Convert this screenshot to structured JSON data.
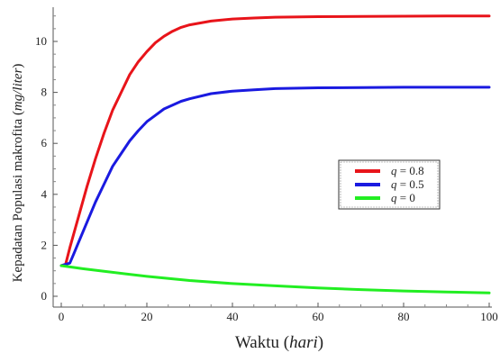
{
  "chart_data": {
    "type": "line",
    "xlabel": {
      "main": "Waktu (",
      "italic": "hari",
      "end": ")"
    },
    "ylabel": {
      "main": "Kepadatan Populasi makrofita (",
      "italic": "mg/liter",
      "end": ")"
    },
    "xlim": [
      0,
      100
    ],
    "ylim": [
      -0.2,
      11.5
    ],
    "xticks": [
      0,
      20,
      40,
      60,
      80,
      100
    ],
    "yticks": [
      0,
      2,
      4,
      6,
      8,
      10
    ],
    "grid": false,
    "legend_position": "right-middle",
    "series": [
      {
        "name": "q = 0.8",
        "legend_var": "q",
        "legend_value": "= 0.8",
        "color": "#e8141a",
        "x": [
          0,
          1,
          2,
          4,
          6,
          8,
          10,
          12,
          14,
          16,
          18,
          20,
          22,
          24,
          26,
          28,
          30,
          35,
          40,
          45,
          50,
          60,
          70,
          80,
          90,
          100
        ],
        "y": [
          1.2,
          1.25,
          1.9,
          3.1,
          4.3,
          5.4,
          6.4,
          7.3,
          8.0,
          8.7,
          9.2,
          9.6,
          9.95,
          10.2,
          10.4,
          10.55,
          10.65,
          10.8,
          10.88,
          10.92,
          10.95,
          10.97,
          10.98,
          10.99,
          11.0,
          11.0
        ]
      },
      {
        "name": "q = 0.5",
        "legend_var": "q",
        "legend_value": "= 0.5",
        "color": "#1a1ae0",
        "x": [
          0,
          1,
          2,
          3,
          4,
          6,
          8,
          10,
          12,
          14,
          16,
          18,
          20,
          22,
          24,
          26,
          28,
          30,
          35,
          40,
          45,
          50,
          60,
          70,
          80,
          90,
          100
        ],
        "y": [
          1.2,
          1.25,
          1.3,
          1.7,
          2.1,
          2.9,
          3.7,
          4.4,
          5.1,
          5.6,
          6.1,
          6.5,
          6.85,
          7.1,
          7.35,
          7.5,
          7.65,
          7.75,
          7.95,
          8.05,
          8.1,
          8.15,
          8.18,
          8.19,
          8.2,
          8.2,
          8.2
        ]
      },
      {
        "name": "q = 0",
        "legend_var": "q",
        "legend_value": "= 0",
        "color": "#22ee22",
        "x": [
          0,
          5,
          10,
          15,
          20,
          30,
          40,
          50,
          60,
          70,
          80,
          90,
          100
        ],
        "y": [
          1.2,
          1.08,
          0.98,
          0.88,
          0.78,
          0.62,
          0.5,
          0.41,
          0.33,
          0.26,
          0.21,
          0.17,
          0.13
        ]
      }
    ]
  }
}
